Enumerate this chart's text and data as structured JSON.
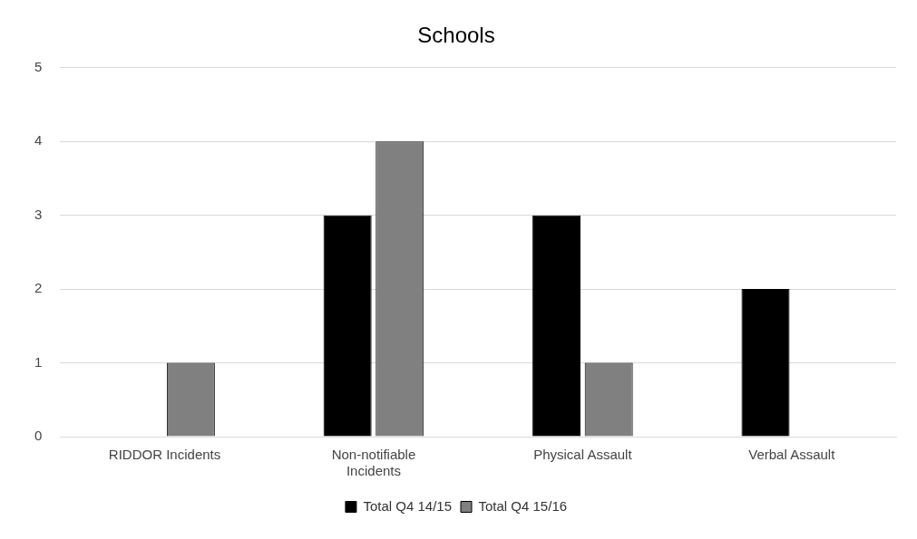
{
  "chart_data": {
    "type": "bar",
    "title": "Schools",
    "categories": [
      "RIDDOR Incidents",
      "Non-notifiable Incidents",
      "Physical Assault",
      "Verbal Assault"
    ],
    "series": [
      {
        "name": "Total Q4 14/15",
        "color": "#000000",
        "values": [
          0,
          3,
          3,
          2
        ]
      },
      {
        "name": "Total Q4 15/16",
        "color": "#808080",
        "values": [
          1,
          4,
          1,
          0
        ]
      }
    ],
    "ylim": [
      0,
      5
    ],
    "yticks": [
      0,
      1,
      2,
      3,
      4,
      5
    ],
    "grid": "y",
    "legend": "bottom"
  }
}
